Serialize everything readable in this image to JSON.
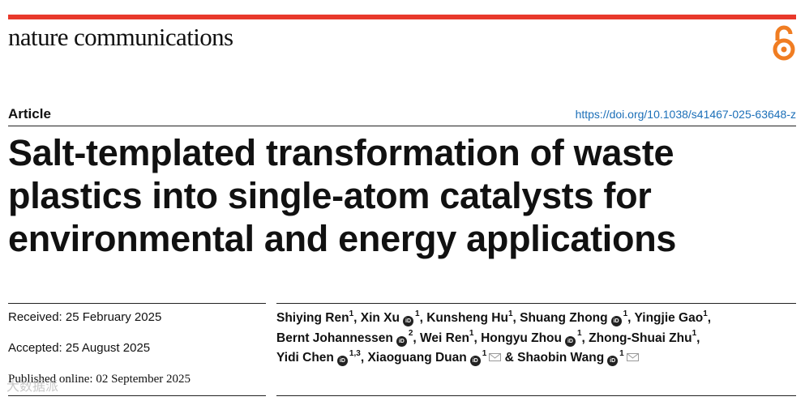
{
  "header": {
    "journal": "nature communications",
    "brand_color": "#e8392b",
    "oa_icon": "open-access-icon",
    "oa_color": "#f07d22"
  },
  "article": {
    "type": "Article",
    "doi": "https://doi.org/10.1038/s41467-025-63648-z",
    "title_lines": [
      "Salt-templated transformation of waste",
      "plastics into single-atom catalysts for",
      "environmental and energy applications"
    ]
  },
  "dates": {
    "received": "Received: 25 February 2025",
    "accepted": "Accepted: 25 August 2025",
    "published": "Published online: 02 September 2025"
  },
  "authors": [
    {
      "name": "Shiying Ren",
      "aff": "1",
      "orcid": false,
      "mail": false,
      "sep": ", "
    },
    {
      "name": "Xin Xu",
      "aff": "1",
      "orcid": true,
      "mail": false,
      "sep": ", "
    },
    {
      "name": "Kunsheng Hu",
      "aff": "1",
      "orcid": false,
      "mail": false,
      "sep": ", "
    },
    {
      "name": "Shuang Zhong",
      "aff": "1",
      "orcid": true,
      "mail": false,
      "sep": ", "
    },
    {
      "name": "Yingjie Gao",
      "aff": "1",
      "orcid": false,
      "mail": false,
      "sep": ","
    },
    {
      "name": "Bernt Johannessen",
      "aff": "2",
      "orcid": true,
      "mail": false,
      "sep": ", "
    },
    {
      "name": "Wei Ren",
      "aff": "1",
      "orcid": false,
      "mail": false,
      "sep": ", "
    },
    {
      "name": "Hongyu Zhou",
      "aff": "1",
      "orcid": true,
      "mail": false,
      "sep": ", "
    },
    {
      "name": "Zhong-Shuai Zhu",
      "aff": "1",
      "orcid": false,
      "mail": false,
      "sep": ","
    },
    {
      "name": "Yidi Chen",
      "aff": "1,3",
      "orcid": true,
      "mail": false,
      "sep": ", "
    },
    {
      "name": "Xiaoguang Duan",
      "aff": "1",
      "orcid": true,
      "mail": true,
      "sep": " & "
    },
    {
      "name": "Shaobin Wang",
      "aff": "1",
      "orcid": true,
      "mail": true,
      "sep": ""
    }
  ],
  "orcid_label": "iD",
  "author_breaks_after": [
    4,
    8
  ],
  "watermark": "大数据派"
}
